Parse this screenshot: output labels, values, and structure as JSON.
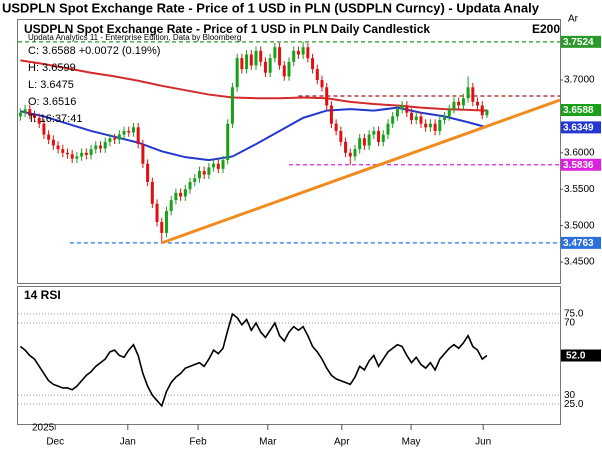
{
  "header": {
    "title": "USDPLN Spot Exchange Rate - Price of 1 USD in PLN (USDPLN Curncy) - Updata Analy",
    "corner": "Ar"
  },
  "chart_data": [
    {
      "type": "candlestick",
      "title": "USDPLN Spot Exchange Rate - Price of 1 USD in PLN Daily Candlestick",
      "title_color": "#1a9a1a",
      "annotation": "E200",
      "annotation_color": "#e00000",
      "info": [
        "Updata Analytics 11 - Enterprise Edition, Data by Bloomberg",
        "C: 3.6588 +0.0072 (0.19%)",
        "H: 3.6599",
        "L: 3.6475",
        "O: 3.6516",
        "T: 16:37:41"
      ],
      "open": [
        3.65,
        3.655,
        3.66,
        3.652,
        3.648,
        3.64,
        3.625,
        3.618,
        3.61,
        3.605,
        3.6,
        3.598,
        3.592,
        3.595,
        3.6,
        3.597,
        3.605,
        3.61,
        3.606,
        3.615,
        3.62,
        3.618,
        3.625,
        3.63,
        3.628,
        3.635,
        3.612,
        3.585,
        3.56,
        3.53,
        3.505,
        3.49,
        3.52,
        3.535,
        3.545,
        3.54,
        3.55,
        3.56,
        3.565,
        3.575,
        3.57,
        3.58,
        3.585,
        3.578,
        3.59,
        3.64,
        3.69,
        3.73,
        3.715,
        3.735,
        3.72,
        3.74,
        3.725,
        3.71,
        3.73,
        3.745,
        3.72,
        3.705,
        3.725,
        3.74,
        3.735,
        3.745,
        3.73,
        3.715,
        3.7,
        3.69,
        3.665,
        3.64,
        3.63,
        3.615,
        3.6,
        3.595,
        3.605,
        3.62,
        3.61,
        3.625,
        3.63,
        3.615,
        3.625,
        3.64,
        3.65,
        3.66,
        3.665,
        3.655,
        3.645,
        3.65,
        3.64,
        3.635,
        3.64,
        3.63,
        3.645,
        3.65,
        3.66,
        3.67,
        3.665,
        3.675,
        3.69,
        3.67,
        3.665,
        3.6516
      ],
      "high": [
        3.661,
        3.666,
        3.666,
        3.658,
        3.654,
        3.646,
        3.631,
        3.624,
        3.616,
        3.611,
        3.606,
        3.604,
        3.601,
        3.606,
        3.606,
        3.611,
        3.616,
        3.616,
        3.621,
        3.626,
        3.626,
        3.631,
        3.636,
        3.636,
        3.641,
        3.641,
        3.618,
        3.591,
        3.566,
        3.536,
        3.511,
        3.526,
        3.541,
        3.551,
        3.551,
        3.556,
        3.566,
        3.571,
        3.581,
        3.581,
        3.586,
        3.591,
        3.591,
        3.596,
        3.646,
        3.696,
        3.736,
        3.736,
        3.741,
        3.741,
        3.746,
        3.746,
        3.731,
        3.736,
        3.751,
        3.751,
        3.726,
        3.731,
        3.746,
        3.746,
        3.7524,
        3.751,
        3.736,
        3.721,
        3.706,
        3.696,
        3.671,
        3.646,
        3.636,
        3.621,
        3.606,
        3.611,
        3.626,
        3.626,
        3.631,
        3.636,
        3.636,
        3.631,
        3.646,
        3.656,
        3.666,
        3.671,
        3.671,
        3.661,
        3.656,
        3.656,
        3.646,
        3.646,
        3.646,
        3.651,
        3.656,
        3.666,
        3.676,
        3.676,
        3.681,
        3.705,
        3.696,
        3.676,
        3.671,
        3.6599
      ],
      "low": [
        3.644,
        3.649,
        3.646,
        3.642,
        3.634,
        3.619,
        3.612,
        3.604,
        3.599,
        3.594,
        3.592,
        3.586,
        3.586,
        3.589,
        3.591,
        3.591,
        3.599,
        3.6,
        3.6,
        3.609,
        3.612,
        3.612,
        3.619,
        3.622,
        3.622,
        3.606,
        3.579,
        3.554,
        3.524,
        3.499,
        3.4763,
        3.484,
        3.514,
        3.529,
        3.534,
        3.534,
        3.544,
        3.554,
        3.559,
        3.564,
        3.564,
        3.574,
        3.572,
        3.572,
        3.584,
        3.634,
        3.684,
        3.709,
        3.709,
        3.714,
        3.714,
        3.719,
        3.704,
        3.704,
        3.724,
        3.714,
        3.699,
        3.699,
        3.719,
        3.729,
        3.729,
        3.724,
        3.709,
        3.694,
        3.684,
        3.659,
        3.634,
        3.624,
        3.609,
        3.594,
        3.5836,
        3.589,
        3.599,
        3.604,
        3.604,
        3.619,
        3.609,
        3.609,
        3.619,
        3.634,
        3.644,
        3.654,
        3.649,
        3.639,
        3.639,
        3.634,
        3.629,
        3.629,
        3.624,
        3.624,
        3.639,
        3.644,
        3.654,
        3.659,
        3.659,
        3.669,
        3.664,
        3.659,
        3.646,
        3.6475
      ],
      "close": [
        3.655,
        3.66,
        3.652,
        3.648,
        3.64,
        3.625,
        3.618,
        3.61,
        3.605,
        3.6,
        3.598,
        3.592,
        3.595,
        3.6,
        3.597,
        3.605,
        3.61,
        3.606,
        3.615,
        3.62,
        3.618,
        3.625,
        3.63,
        3.628,
        3.635,
        3.612,
        3.585,
        3.56,
        3.53,
        3.505,
        3.49,
        3.52,
        3.535,
        3.545,
        3.54,
        3.55,
        3.56,
        3.565,
        3.575,
        3.57,
        3.58,
        3.585,
        3.578,
        3.59,
        3.64,
        3.69,
        3.73,
        3.715,
        3.735,
        3.72,
        3.74,
        3.725,
        3.71,
        3.73,
        3.745,
        3.72,
        3.705,
        3.725,
        3.74,
        3.735,
        3.745,
        3.73,
        3.715,
        3.7,
        3.69,
        3.665,
        3.64,
        3.63,
        3.615,
        3.6,
        3.595,
        3.605,
        3.62,
        3.61,
        3.625,
        3.63,
        3.615,
        3.625,
        3.64,
        3.65,
        3.66,
        3.665,
        3.655,
        3.645,
        3.65,
        3.64,
        3.635,
        3.64,
        3.63,
        3.645,
        3.65,
        3.66,
        3.67,
        3.665,
        3.675,
        3.69,
        3.67,
        3.665,
        3.6516,
        3.6588
      ],
      "up_color": "#18a018",
      "down_color": "#e01010",
      "last_color": "#18a018",
      "series": [
        {
          "name": "E200",
          "color": "#d42a2a",
          "x": [
            0,
            5,
            10,
            15,
            20,
            25,
            30,
            35,
            40,
            45,
            50,
            55,
            60,
            65,
            70,
            75,
            80,
            85,
            90,
            95,
            99
          ],
          "values": [
            3.727,
            3.722,
            3.716,
            3.71,
            3.705,
            3.699,
            3.692,
            3.686,
            3.68,
            3.676,
            3.675,
            3.675,
            3.676,
            3.675,
            3.67,
            3.667,
            3.665,
            3.662,
            3.66,
            3.659,
            3.658
          ]
        },
        {
          "color": "#2438d0",
          "x": [
            0,
            5,
            10,
            15,
            20,
            25,
            30,
            35,
            40,
            45,
            50,
            55,
            60,
            65,
            70,
            75,
            80,
            85,
            90,
            95,
            99
          ],
          "values": [
            3.657,
            3.65,
            3.64,
            3.63,
            3.622,
            3.614,
            3.602,
            3.594,
            3.59,
            3.595,
            3.612,
            3.63,
            3.648,
            3.658,
            3.66,
            3.658,
            3.662,
            3.655,
            3.65,
            3.642,
            3.6349
          ]
        }
      ],
      "levels": [
        {
          "value": 3.7524,
          "color": "#2a9a2a",
          "from": -0.5,
          "boxed": true
        },
        {
          "value": 3.678,
          "color": "#a01818",
          "from": 59,
          "boxed": false
        },
        {
          "value": 3.5836,
          "color": "#e020e0",
          "from": 57,
          "boxed": true
        },
        {
          "value": 3.4763,
          "color": "#2a70e0",
          "from": 10.5,
          "boxed": true
        }
      ],
      "trendline": {
        "color": "#f08c1e",
        "x": [
          30,
          114.5
        ],
        "values": [
          3.4763,
          3.6725
        ]
      },
      "xlim": [
        -0.5,
        114.5
      ],
      "xticks": [
        {
          "value": 7.4,
          "label": "Dec"
        },
        {
          "value": 22.8,
          "label": "Jan"
        },
        {
          "value": 37.7,
          "label": "Feb"
        },
        {
          "value": 52.5,
          "label": "Mar"
        },
        {
          "value": 68.2,
          "label": "Apr"
        },
        {
          "value": 82.9,
          "label": "May"
        },
        {
          "value": 98.2,
          "label": "Jun"
        }
      ],
      "x_axis_year": "2025",
      "ylim": [
        3.4212,
        3.7824
      ],
      "yticks": [
        {
          "value": 3.45,
          "label": "3.4500"
        },
        {
          "value": 3.5,
          "label": "3.5000"
        },
        {
          "value": 3.55,
          "label": "3.5500"
        },
        {
          "value": 3.6,
          "label": "3.6000"
        },
        {
          "value": 3.7,
          "label": "3.7000"
        }
      ],
      "grid": false
    },
    {
      "type": "line",
      "title": "14 RSI",
      "color": "#000000",
      "box_color": "#000000",
      "values": [
        57,
        55,
        52,
        50,
        46,
        42,
        38,
        36,
        35,
        34,
        34,
        33,
        35,
        38,
        41,
        43,
        46,
        48,
        50,
        54,
        55,
        52,
        51,
        55,
        58,
        52,
        42,
        35,
        30,
        27,
        24,
        32,
        37,
        40,
        42,
        45,
        46,
        47,
        48,
        46,
        50,
        55,
        53,
        56,
        66,
        75,
        73,
        69,
        72,
        66,
        70,
        65,
        62,
        66,
        70,
        63,
        60,
        65,
        68,
        66,
        68,
        63,
        57,
        54,
        50,
        45,
        41,
        39,
        38,
        37,
        36,
        40,
        46,
        44,
        49,
        52,
        46,
        50,
        54,
        56,
        58,
        57,
        52,
        48,
        51,
        47,
        45,
        48,
        44,
        50,
        53,
        56,
        58,
        56,
        59,
        63,
        57,
        55,
        50,
        52
      ],
      "value_labels": [
        null,
        null,
        null,
        null,
        null,
        null,
        null,
        null,
        null,
        null,
        null,
        null,
        null,
        null,
        null,
        null,
        null,
        null,
        null,
        null,
        null,
        null,
        null,
        null,
        null,
        null,
        null,
        null,
        null,
        null,
        null,
        null,
        null,
        null,
        null,
        null,
        null,
        null,
        null,
        null,
        null,
        null,
        null,
        null,
        null,
        null,
        null,
        null,
        null,
        null,
        null,
        null,
        null,
        null,
        null,
        null,
        null,
        null,
        null,
        null,
        null,
        null,
        null,
        null,
        null,
        null,
        null,
        null,
        null,
        null,
        null,
        null,
        null,
        null,
        null,
        null,
        null,
        null,
        null,
        null,
        null,
        null,
        null,
        null,
        null,
        null,
        null,
        null,
        null,
        null,
        null,
        null,
        null,
        null,
        null,
        null,
        null,
        null,
        null,
        "52.0"
      ],
      "ylim": [
        14,
        90
      ],
      "yticks": [
        {
          "value": 25,
          "label": "25.0"
        },
        30,
        70,
        {
          "value": 75,
          "label": "75.0"
        }
      ],
      "grid": true
    }
  ]
}
